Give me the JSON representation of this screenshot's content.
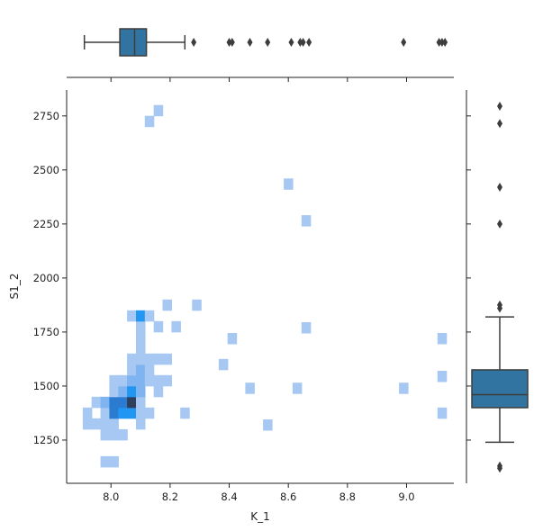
{
  "chart_data": {
    "type": "heatmap",
    "subtype": "jointplot (2D histogram with marginal box plots)",
    "xlabel": "K_1",
    "ylabel": "S1_2",
    "xlim": [
      7.85,
      9.16
    ],
    "ylim": [
      1050,
      2870
    ],
    "xticks": [
      8.0,
      8.2,
      8.4,
      8.6,
      8.8,
      9.0
    ],
    "yticks": [
      1250,
      1500,
      1750,
      2000,
      2250,
      2500,
      2750
    ],
    "xtick_labels": [
      "8.0",
      "8.2",
      "8.4",
      "8.6",
      "8.8",
      "9.0"
    ],
    "ytick_labels": [
      "1250",
      "1500",
      "1750",
      "2000",
      "2250",
      "2500",
      "2750"
    ],
    "colors": {
      "box": "#3274a1",
      "cell_low": "#a6c8f2",
      "cell_high": "#2f3f5c",
      "axis": "#222222"
    },
    "histogram_cells": [
      {
        "x": 7.92,
        "y": 1325,
        "count": 1
      },
      {
        "x": 7.92,
        "y": 1375,
        "count": 1
      },
      {
        "x": 7.95,
        "y": 1325,
        "count": 1
      },
      {
        "x": 7.95,
        "y": 1425,
        "count": 1
      },
      {
        "x": 7.98,
        "y": 1275,
        "count": 1
      },
      {
        "x": 7.98,
        "y": 1325,
        "count": 1
      },
      {
        "x": 7.98,
        "y": 1375,
        "count": 1
      },
      {
        "x": 7.98,
        "y": 1425,
        "count": 2
      },
      {
        "x": 7.98,
        "y": 1150,
        "count": 1
      },
      {
        "x": 8.01,
        "y": 1275,
        "count": 1
      },
      {
        "x": 8.01,
        "y": 1325,
        "count": 1
      },
      {
        "x": 8.01,
        "y": 1375,
        "count": 4
      },
      {
        "x": 8.01,
        "y": 1425,
        "count": 4
      },
      {
        "x": 8.01,
        "y": 1475,
        "count": 1
      },
      {
        "x": 8.01,
        "y": 1525,
        "count": 1
      },
      {
        "x": 8.01,
        "y": 1150,
        "count": 1
      },
      {
        "x": 8.04,
        "y": 1275,
        "count": 1
      },
      {
        "x": 8.04,
        "y": 1375,
        "count": 3
      },
      {
        "x": 8.04,
        "y": 1425,
        "count": 4
      },
      {
        "x": 8.04,
        "y": 1475,
        "count": 2
      },
      {
        "x": 8.04,
        "y": 1525,
        "count": 1
      },
      {
        "x": 8.07,
        "y": 1375,
        "count": 3
      },
      {
        "x": 8.07,
        "y": 1425,
        "count": 6
      },
      {
        "x": 8.07,
        "y": 1475,
        "count": 3
      },
      {
        "x": 8.07,
        "y": 1525,
        "count": 2
      },
      {
        "x": 8.07,
        "y": 1575,
        "count": 1
      },
      {
        "x": 8.07,
        "y": 1625,
        "count": 1
      },
      {
        "x": 8.07,
        "y": 1825,
        "count": 1
      },
      {
        "x": 8.1,
        "y": 1325,
        "count": 1
      },
      {
        "x": 8.1,
        "y": 1375,
        "count": 1
      },
      {
        "x": 8.1,
        "y": 1425,
        "count": 1
      },
      {
        "x": 8.1,
        "y": 1475,
        "count": 2
      },
      {
        "x": 8.1,
        "y": 1525,
        "count": 2
      },
      {
        "x": 8.1,
        "y": 1575,
        "count": 2
      },
      {
        "x": 8.1,
        "y": 1625,
        "count": 1
      },
      {
        "x": 8.1,
        "y": 1675,
        "count": 1
      },
      {
        "x": 8.1,
        "y": 1725,
        "count": 1
      },
      {
        "x": 8.1,
        "y": 1775,
        "count": 1
      },
      {
        "x": 8.1,
        "y": 1825,
        "count": 3
      },
      {
        "x": 8.13,
        "y": 1375,
        "count": 1
      },
      {
        "x": 8.13,
        "y": 1525,
        "count": 1
      },
      {
        "x": 8.13,
        "y": 1575,
        "count": 1
      },
      {
        "x": 8.13,
        "y": 1625,
        "count": 1
      },
      {
        "x": 8.13,
        "y": 1825,
        "count": 1
      },
      {
        "x": 8.13,
        "y": 2725,
        "count": 1
      },
      {
        "x": 8.16,
        "y": 1475,
        "count": 1
      },
      {
        "x": 8.16,
        "y": 1525,
        "count": 1
      },
      {
        "x": 8.16,
        "y": 1625,
        "count": 1
      },
      {
        "x": 8.16,
        "y": 1775,
        "count": 1
      },
      {
        "x": 8.16,
        "y": 2775,
        "count": 1
      },
      {
        "x": 8.19,
        "y": 1525,
        "count": 1
      },
      {
        "x": 8.19,
        "y": 1625,
        "count": 1
      },
      {
        "x": 8.19,
        "y": 1875,
        "count": 1
      },
      {
        "x": 8.22,
        "y": 1775,
        "count": 1
      },
      {
        "x": 8.25,
        "y": 1375,
        "count": 1
      },
      {
        "x": 8.29,
        "y": 1875,
        "count": 1
      },
      {
        "x": 8.38,
        "y": 1600,
        "count": 1
      },
      {
        "x": 8.41,
        "y": 1720,
        "count": 1
      },
      {
        "x": 8.47,
        "y": 1490,
        "count": 1
      },
      {
        "x": 8.53,
        "y": 1320,
        "count": 1
      },
      {
        "x": 8.6,
        "y": 2435,
        "count": 1
      },
      {
        "x": 8.63,
        "y": 1490,
        "count": 1
      },
      {
        "x": 8.66,
        "y": 2265,
        "count": 1
      },
      {
        "x": 8.66,
        "y": 1770,
        "count": 1
      },
      {
        "x": 8.99,
        "y": 1490,
        "count": 1
      },
      {
        "x": 9.12,
        "y": 1720,
        "count": 1
      },
      {
        "x": 9.12,
        "y": 1545,
        "count": 1
      },
      {
        "x": 9.12,
        "y": 1375,
        "count": 1
      }
    ],
    "marginal_x_box": {
      "whisker_low": 7.91,
      "q1": 8.03,
      "median": 8.08,
      "q3": 8.12,
      "whisker_high": 8.25,
      "outliers": [
        8.28,
        8.4,
        8.41,
        8.47,
        8.53,
        8.61,
        8.64,
        8.65,
        8.67,
        8.99,
        9.11,
        9.12,
        9.13
      ]
    },
    "marginal_y_box": {
      "whisker_low": 1240,
      "q1": 1400,
      "median": 1460,
      "q3": 1575,
      "whisker_high": 1820,
      "outliers": [
        1120,
        1130,
        1860,
        1875,
        2250,
        2420,
        2715,
        2795
      ]
    }
  }
}
